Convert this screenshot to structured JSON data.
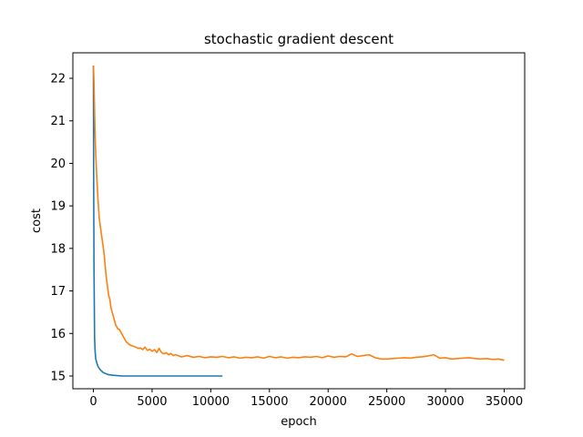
{
  "chart_data": {
    "type": "line",
    "title": "stochastic gradient descent",
    "xlabel": "epoch",
    "ylabel": "cost",
    "xlim": [
      -1750,
      36750
    ],
    "ylim": [
      14.7,
      22.6
    ],
    "xticks": [
      0,
      5000,
      10000,
      15000,
      20000,
      25000,
      30000,
      35000
    ],
    "yticks": [
      15,
      16,
      17,
      18,
      19,
      20,
      21,
      22
    ],
    "grid": false,
    "legend": "none",
    "series": [
      {
        "color": "#1f77b4",
        "x": [
          0,
          20,
          50,
          100,
          150,
          200,
          300,
          400,
          600,
          800,
          1000,
          1300,
          1600,
          2000,
          2500,
          3000,
          4000,
          5000,
          7000,
          9000,
          11000
        ],
        "y": [
          22.3,
          19.8,
          17.5,
          15.9,
          15.55,
          15.4,
          15.3,
          15.22,
          15.14,
          15.09,
          15.06,
          15.03,
          15.02,
          15.01,
          15.0,
          15.0,
          15.0,
          15.0,
          15.0,
          15.0,
          15.0
        ]
      },
      {
        "color": "#ff7f0e",
        "x": [
          0,
          50,
          100,
          150,
          200,
          250,
          300,
          400,
          500,
          600,
          700,
          800,
          900,
          1000,
          1100,
          1200,
          1300,
          1400,
          1500,
          1600,
          1700,
          1800,
          1900,
          2000,
          2100,
          2200,
          2300,
          2400,
          2500,
          2600,
          2700,
          2800,
          2900,
          3000,
          3200,
          3400,
          3600,
          3800,
          4000,
          4200,
          4400,
          4600,
          4800,
          5000,
          5200,
          5400,
          5600,
          5800,
          6000,
          6200,
          6400,
          6600,
          6800,
          7000,
          7500,
          8000,
          8500,
          9000,
          9500,
          10000,
          10500,
          11000,
          11500,
          12000,
          12500,
          13000,
          13500,
          14000,
          14500,
          15000,
          15500,
          16000,
          16500,
          17000,
          17500,
          18000,
          18500,
          19000,
          19500,
          20000,
          20500,
          21000,
          21500,
          22000,
          22500,
          23000,
          23500,
          24000,
          24500,
          25000,
          25500,
          26000,
          26500,
          27000,
          27500,
          28000,
          28500,
          29000,
          29500,
          30000,
          30500,
          31000,
          31500,
          32000,
          32500,
          33000,
          33500,
          34000,
          34500,
          35000
        ],
        "y": [
          22.3,
          21.9,
          21.2,
          20.6,
          20.2,
          19.9,
          19.6,
          19.1,
          18.7,
          18.5,
          18.3,
          18.1,
          17.9,
          17.6,
          17.3,
          17.1,
          16.9,
          16.8,
          16.6,
          16.5,
          16.4,
          16.3,
          16.2,
          16.15,
          16.1,
          16.1,
          16.05,
          16.0,
          15.95,
          15.9,
          15.85,
          15.8,
          15.78,
          15.75,
          15.72,
          15.7,
          15.68,
          15.65,
          15.66,
          15.62,
          15.68,
          15.6,
          15.63,
          15.58,
          15.62,
          15.55,
          15.65,
          15.55,
          15.52,
          15.55,
          15.5,
          15.53,
          15.48,
          15.5,
          15.45,
          15.48,
          15.44,
          15.46,
          15.43,
          15.45,
          15.44,
          15.46,
          15.43,
          15.45,
          15.42,
          15.44,
          15.43,
          15.45,
          15.42,
          15.46,
          15.43,
          15.45,
          15.42,
          15.44,
          15.43,
          15.45,
          15.44,
          15.46,
          15.43,
          15.47,
          15.44,
          15.46,
          15.45,
          15.52,
          15.46,
          15.48,
          15.5,
          15.43,
          15.4,
          15.4,
          15.41,
          15.42,
          15.43,
          15.42,
          15.44,
          15.45,
          15.47,
          15.5,
          15.42,
          15.43,
          15.4,
          15.41,
          15.42,
          15.43,
          15.41,
          15.4,
          15.41,
          15.39,
          15.4,
          15.37
        ]
      }
    ]
  }
}
